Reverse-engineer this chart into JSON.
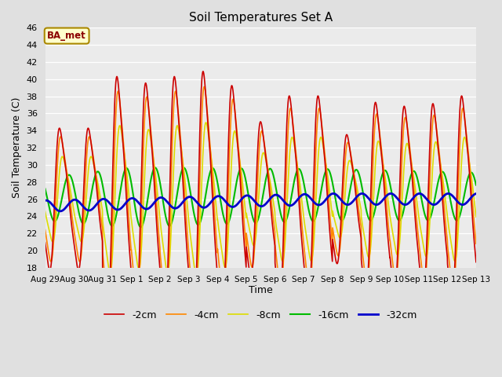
{
  "title": "Soil Temperatures Set A",
  "xlabel": "Time",
  "ylabel": "Soil Temperature (C)",
  "ylim": [
    18,
    46
  ],
  "yticks": [
    18,
    20,
    22,
    24,
    26,
    28,
    30,
    32,
    34,
    36,
    38,
    40,
    42,
    44,
    46
  ],
  "bg_color": "#e0e0e0",
  "plot_bg_color": "#ebebeb",
  "legend_label": "BA_met",
  "series_colors": {
    "-2cm": "#cc0000",
    "-4cm": "#ff8800",
    "-8cm": "#dddd00",
    "-16cm": "#00bb00",
    "-32cm": "#0000cc"
  },
  "series_linewidths": {
    "-2cm": 1.2,
    "-4cm": 1.2,
    "-8cm": 1.2,
    "-16cm": 1.5,
    "-32cm": 2.0
  },
  "xtick_labels": [
    "Aug 29",
    "Aug 30",
    "Aug 31",
    "Sep 1",
    "Sep 2",
    "Sep 3",
    "Sep 4",
    "Sep 5",
    "Sep 6",
    "Sep 7",
    "Sep 8",
    "Sep 9",
    "Sep 10",
    "Sep 11",
    "Sep 12",
    "Sep 13"
  ],
  "num_days": 15,
  "points_per_day": 144,
  "figsize": [
    6.4,
    4.8
  ],
  "dpi": 100
}
